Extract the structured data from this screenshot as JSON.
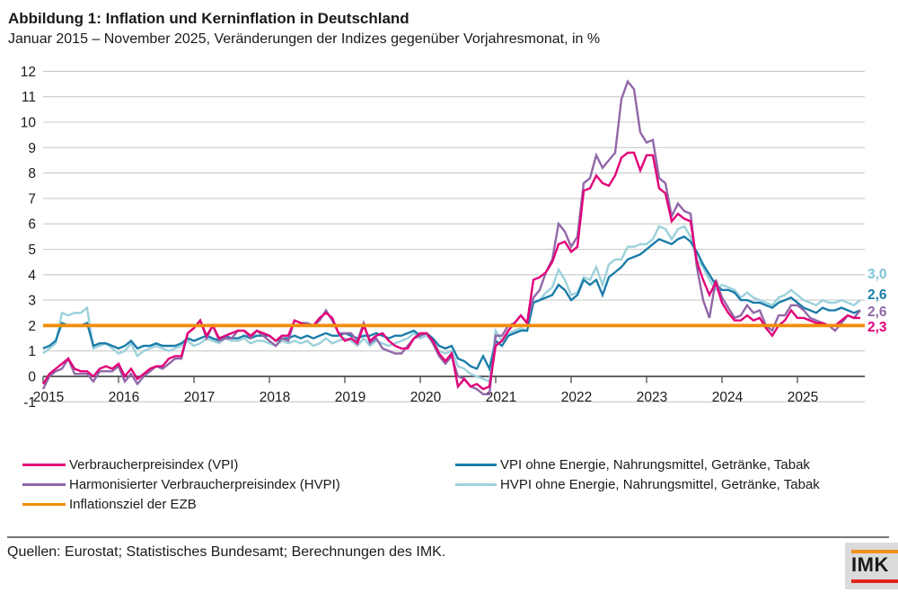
{
  "header": {
    "title": "Abbildung 1: Inflation und Kerninflation in Deutschland",
    "subtitle": "Januar 2015 – November 2025, Veränderungen der Indizes gegenüber Vorjahresmonat, in %"
  },
  "chart_data": {
    "type": "line",
    "x_start": "2015-01",
    "x_end": "2025-11",
    "x_tick_labels": [
      "2015",
      "2016",
      "2017",
      "2018",
      "2019",
      "2020",
      "2021",
      "2022",
      "2023",
      "2024",
      "2025"
    ],
    "y_ticks": [
      -1,
      0,
      1,
      2,
      3,
      4,
      5,
      6,
      7,
      8,
      9,
      10,
      11,
      12
    ],
    "ylim": [
      -1,
      12
    ],
    "grid": true,
    "colors": {
      "grid": "#c9c9c9",
      "zero_axis": "#4d4d4d",
      "text": "#1a1a1a"
    },
    "target_line": {
      "label": "Inflationsziel der EZB",
      "value": 2.0,
      "color": "#f28c00"
    },
    "series": [
      {
        "name": "Verbraucherpreisindex (VPI)",
        "color": "#e2007a",
        "end_label": "2,3",
        "values": [
          -0.3,
          0.1,
          0.3,
          0.5,
          0.7,
          0.3,
          0.2,
          0.2,
          0.0,
          0.3,
          0.4,
          0.3,
          0.5,
          0.0,
          0.3,
          -0.1,
          0.1,
          0.3,
          0.4,
          0.4,
          0.7,
          0.8,
          0.8,
          1.7,
          1.9,
          2.2,
          1.6,
          2.0,
          1.5,
          1.6,
          1.7,
          1.8,
          1.8,
          1.6,
          1.8,
          1.7,
          1.6,
          1.4,
          1.6,
          1.6,
          2.2,
          2.1,
          2.0,
          2.0,
          2.3,
          2.5,
          2.3,
          1.7,
          1.4,
          1.5,
          1.3,
          2.0,
          1.4,
          1.6,
          1.7,
          1.4,
          1.2,
          1.1,
          1.1,
          1.5,
          1.7,
          1.7,
          1.4,
          0.9,
          0.6,
          0.9,
          -0.4,
          -0.1,
          -0.4,
          -0.3,
          -0.5,
          -0.4,
          1.2,
          1.4,
          1.8,
          2.1,
          2.4,
          2.1,
          3.8,
          3.9,
          4.1,
          4.5,
          5.2,
          5.3,
          4.9,
          5.1,
          7.3,
          7.4,
          7.9,
          7.6,
          7.5,
          7.9,
          8.6,
          8.8,
          8.8,
          8.1,
          8.7,
          8.7,
          7.4,
          7.2,
          6.1,
          6.4,
          6.2,
          6.1,
          4.5,
          3.8,
          3.2,
          3.7,
          2.9,
          2.5,
          2.2,
          2.2,
          2.4,
          2.2,
          2.3,
          1.9,
          1.6,
          2.0,
          2.2,
          2.6,
          2.3,
          2.3,
          2.2,
          2.1,
          2.1,
          2.0,
          2.0,
          2.2,
          2.4,
          2.3,
          2.3
        ]
      },
      {
        "name": "Harmonisierter Verbraucherpreisindex (HVPI)",
        "color": "#9167a8",
        "end_label": "2,6",
        "values": [
          -0.5,
          0.0,
          0.2,
          0.3,
          0.7,
          0.1,
          0.1,
          0.1,
          -0.2,
          0.2,
          0.2,
          0.2,
          0.4,
          -0.2,
          0.1,
          -0.3,
          0.0,
          0.2,
          0.4,
          0.3,
          0.5,
          0.7,
          0.7,
          1.7,
          1.9,
          2.2,
          1.5,
          2.0,
          1.4,
          1.5,
          1.5,
          1.8,
          1.8,
          1.5,
          1.8,
          1.6,
          1.4,
          1.2,
          1.5,
          1.4,
          2.2,
          2.1,
          2.1,
          2.0,
          2.2,
          2.6,
          2.2,
          1.7,
          1.7,
          1.7,
          1.4,
          2.1,
          1.3,
          1.5,
          1.1,
          1.0,
          0.9,
          0.9,
          1.2,
          1.5,
          1.6,
          1.7,
          1.3,
          0.8,
          0.5,
          0.8,
          0.0,
          -0.1,
          -0.4,
          -0.5,
          -0.7,
          -0.7,
          1.6,
          1.6,
          2.0,
          2.1,
          2.4,
          2.1,
          3.1,
          3.4,
          4.1,
          4.6,
          6.0,
          5.7,
          5.1,
          5.5,
          7.6,
          7.8,
          8.7,
          8.2,
          8.5,
          8.8,
          10.9,
          11.6,
          11.3,
          9.6,
          9.2,
          9.3,
          7.8,
          7.6,
          6.3,
          6.8,
          6.5,
          6.4,
          4.3,
          3.0,
          2.3,
          3.8,
          3.1,
          2.7,
          2.3,
          2.4,
          2.8,
          2.5,
          2.6,
          2.0,
          1.8,
          2.4,
          2.4,
          2.8,
          2.8,
          2.6,
          2.3,
          2.2,
          2.1,
          2.0,
          1.8,
          2.1,
          2.4,
          2.3,
          2.6
        ]
      },
      {
        "name": "VPI ohne Energie, Nahrungsmittel, Getränke, Tabak",
        "color": "#1b7da9",
        "end_label": "2,6",
        "values": [
          1.1,
          1.2,
          1.4,
          2.1,
          2.0,
          2.0,
          2.0,
          2.1,
          1.2,
          1.3,
          1.3,
          1.2,
          1.1,
          1.2,
          1.4,
          1.1,
          1.2,
          1.2,
          1.3,
          1.2,
          1.2,
          1.2,
          1.3,
          1.5,
          1.4,
          1.5,
          1.6,
          1.5,
          1.4,
          1.6,
          1.5,
          1.5,
          1.6,
          1.5,
          1.6,
          1.6,
          1.6,
          1.4,
          1.5,
          1.5,
          1.6,
          1.5,
          1.6,
          1.5,
          1.6,
          1.7,
          1.6,
          1.6,
          1.7,
          1.6,
          1.5,
          1.6,
          1.6,
          1.7,
          1.6,
          1.5,
          1.6,
          1.6,
          1.7,
          1.8,
          1.6,
          1.7,
          1.5,
          1.2,
          1.1,
          1.2,
          0.7,
          0.6,
          0.4,
          0.3,
          0.8,
          0.3,
          1.4,
          1.2,
          1.6,
          1.7,
          1.8,
          1.8,
          2.9,
          3.0,
          3.1,
          3.2,
          3.6,
          3.4,
          3.0,
          3.2,
          3.8,
          3.6,
          3.8,
          3.2,
          3.9,
          4.1,
          4.3,
          4.6,
          4.7,
          4.8,
          5.0,
          5.2,
          5.4,
          5.3,
          5.2,
          5.4,
          5.5,
          5.3,
          4.9,
          4.4,
          4.0,
          3.6,
          3.4,
          3.4,
          3.3,
          3.0,
          3.0,
          2.9,
          2.9,
          2.8,
          2.7,
          2.9,
          3.0,
          3.1,
          2.9,
          2.7,
          2.6,
          2.5,
          2.7,
          2.6,
          2.6,
          2.7,
          2.6,
          2.5,
          2.6
        ]
      },
      {
        "name": "HVPI ohne Energie, Nahrungsmittel, Getränke, Tabak",
        "color": "#9cd1db",
        "end_label": "3,0",
        "end_label_color": "#7ec4d6",
        "values": [
          0.9,
          1.1,
          1.3,
          2.5,
          2.4,
          2.5,
          2.5,
          2.7,
          1.1,
          1.2,
          1.3,
          1.1,
          0.9,
          1.0,
          1.3,
          0.8,
          1.0,
          1.1,
          1.2,
          1.1,
          1.0,
          1.1,
          1.2,
          1.4,
          1.2,
          1.3,
          1.5,
          1.4,
          1.3,
          1.5,
          1.4,
          1.4,
          1.5,
          1.3,
          1.4,
          1.4,
          1.3,
          1.2,
          1.4,
          1.3,
          1.4,
          1.3,
          1.4,
          1.2,
          1.3,
          1.5,
          1.3,
          1.4,
          1.5,
          1.4,
          1.2,
          1.5,
          1.2,
          1.4,
          1.3,
          1.2,
          1.3,
          1.4,
          1.5,
          1.7,
          1.5,
          1.6,
          1.4,
          1.0,
          0.9,
          1.0,
          0.4,
          0.3,
          0.1,
          0.0,
          -0.1,
          -0.2,
          1.8,
          1.4,
          1.7,
          1.8,
          1.9,
          1.8,
          2.9,
          3.0,
          3.3,
          3.5,
          4.2,
          3.8,
          3.2,
          3.3,
          3.9,
          3.8,
          4.3,
          3.6,
          4.4,
          4.6,
          4.6,
          5.1,
          5.1,
          5.2,
          5.2,
          5.4,
          5.9,
          5.8,
          5.4,
          5.8,
          5.9,
          5.5,
          4.6,
          4.3,
          3.8,
          3.4,
          3.6,
          3.5,
          3.4,
          3.1,
          3.3,
          3.1,
          3.0,
          2.9,
          2.8,
          3.1,
          3.2,
          3.4,
          3.2,
          3.0,
          2.9,
          2.8,
          3.0,
          2.9,
          2.9,
          3.0,
          2.9,
          2.8,
          3.0
        ]
      }
    ]
  },
  "footer": {
    "source": "Quellen: Eurostat; Statistisches Bundesamt; Berechnungen des IMK.",
    "logo_text": "IMK",
    "logo_orange": "#f18f1f",
    "logo_red": "#e2251b"
  }
}
